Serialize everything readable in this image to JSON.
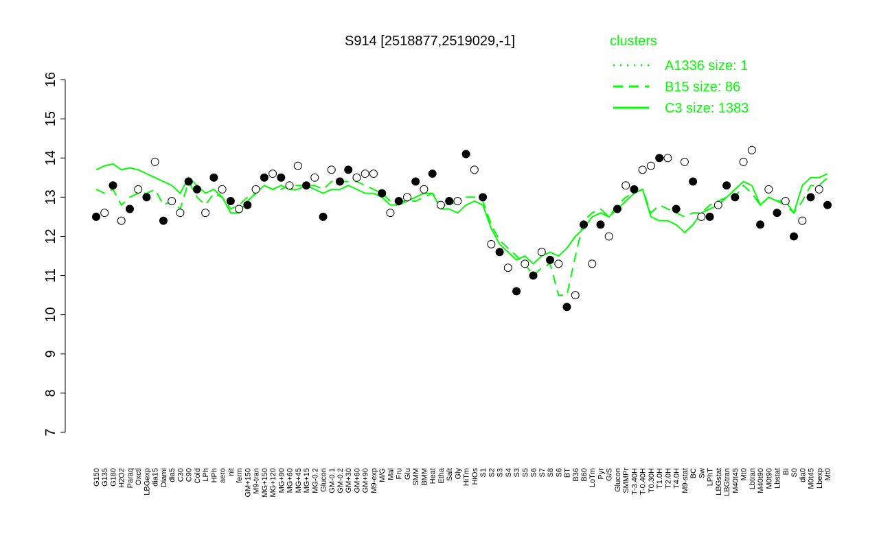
{
  "chart_data": {
    "type": "line",
    "title": "S914 [2518877,2519029,-1]",
    "legend_title": "clusters",
    "ylim": [
      7,
      16
    ],
    "yticks": [
      7,
      8,
      9,
      10,
      11,
      12,
      13,
      14,
      15,
      16
    ],
    "categories": [
      "G150",
      "G135",
      "G180",
      "H2O2",
      "Paraq",
      "Oxctl",
      "LBGexp",
      "dia15",
      "Diami",
      "dia5",
      "C30",
      "C90",
      "Cold",
      "LPh",
      "HPh",
      "aero",
      "nit",
      "ferm",
      "GM+150",
      "M9-tran",
      "MG+150",
      "MG+120",
      "MG+90",
      "MG+60",
      "MG+45",
      "MG+15",
      "MG-0.2",
      "Glucon",
      "GM-0.1",
      "GM-0.2",
      "GM+30",
      "GM+60",
      "GM+90",
      "M9-exp",
      "M/G",
      "Mal",
      "Fru",
      "Glu",
      "SMM",
      "BMM",
      "Heat",
      "Etha",
      "Salt",
      "Gly",
      "HiTm",
      "HiOs",
      "S1",
      "S2",
      "S3",
      "S4",
      "S3",
      "S5",
      "S6",
      "S7",
      "S8",
      "S6",
      "BT",
      "B36",
      "B60",
      "LoTm",
      "Pyr",
      "G/S",
      "Glucon",
      "SMMPr",
      "T-3.40H",
      "T-0.40H",
      "T0.30H",
      "T1.0H",
      "T2.0H",
      "T4.0H",
      "M9-stat",
      "BC",
      "Sw",
      "LPhT",
      "LBGstat",
      "LBGtran",
      "M40t45",
      "Mt0",
      "Lbtran",
      "M40t90",
      "M0t90",
      "Lbstat",
      "BI",
      "S0",
      "dia0",
      "M0t45",
      "Lbexp",
      "Mt0"
    ],
    "points": {
      "values": [
        12.5,
        12.6,
        13.3,
        12.4,
        12.7,
        13.2,
        13.0,
        13.9,
        12.4,
        12.9,
        12.6,
        13.4,
        13.2,
        12.6,
        13.5,
        13.2,
        12.9,
        12.7,
        12.8,
        13.2,
        13.5,
        13.6,
        13.5,
        13.3,
        13.8,
        13.3,
        13.5,
        12.5,
        13.7,
        13.4,
        13.7,
        13.5,
        13.6,
        13.6,
        13.1,
        12.6,
        12.9,
        13.0,
        13.4,
        13.2,
        13.6,
        12.8,
        12.9,
        12.9,
        14.1,
        13.7,
        13.0,
        11.8,
        11.6,
        11.2,
        10.6,
        11.3,
        11.0,
        11.6,
        11.4,
        11.3,
        10.2,
        10.5,
        12.3,
        11.3,
        12.3,
        12.0,
        12.7,
        13.3,
        13.2,
        13.7,
        13.8,
        14.0,
        14.0,
        12.7,
        13.9,
        13.4,
        12.5,
        12.5,
        12.8,
        13.3,
        13.0,
        13.9,
        14.2,
        12.3,
        13.2,
        12.6,
        12.9,
        12.0,
        12.4,
        13.0,
        13.2,
        12.8
      ],
      "filled": [
        true,
        false,
        true,
        false,
        true,
        false,
        true,
        false,
        true,
        false,
        false,
        true,
        true,
        false,
        true,
        false,
        true,
        false,
        true,
        false,
        true,
        false,
        true,
        false,
        false,
        true,
        false,
        true,
        false,
        true,
        true,
        false,
        false,
        false,
        true,
        false,
        true,
        false,
        true,
        false,
        true,
        false,
        true,
        false,
        true,
        false,
        true,
        false,
        true,
        false,
        true,
        false,
        true,
        false,
        true,
        false,
        true,
        false,
        true,
        false,
        true,
        false,
        true,
        false,
        true,
        false,
        false,
        true,
        false,
        true,
        false,
        true,
        false,
        true,
        false,
        true,
        true,
        false,
        false,
        true,
        false,
        true,
        false,
        true,
        false,
        true,
        false,
        true
      ]
    },
    "series": [
      {
        "name": "A1336 size: 1",
        "color": "#00ff00",
        "style": "dotted"
      },
      {
        "name": "B15 size: 86",
        "color": "#00ff00",
        "style": "dashed",
        "values": [
          13.2,
          13.1,
          13.2,
          12.8,
          13.0,
          13.1,
          13.1,
          13.2,
          12.8,
          12.9,
          12.7,
          13.4,
          13.0,
          12.8,
          13.1,
          13.0,
          12.7,
          12.8,
          13.0,
          13.1,
          13.3,
          13.2,
          13.2,
          13.3,
          13.3,
          13.3,
          13.3,
          13.2,
          13.4,
          13.4,
          13.4,
          13.4,
          13.3,
          13.2,
          13.1,
          12.9,
          12.9,
          12.9,
          12.9,
          13.0,
          13.1,
          12.8,
          12.8,
          12.9,
          13.0,
          13.0,
          12.9,
          12.3,
          11.9,
          11.7,
          11.5,
          11.3,
          11.0,
          11.2,
          11.3,
          10.5,
          10.5,
          11.5,
          12.4,
          12.6,
          12.7,
          12.5,
          12.8,
          13.0,
          13.1,
          13.2,
          12.6,
          12.8,
          12.7,
          12.6,
          12.5,
          12.6,
          12.6,
          12.8,
          12.9,
          13.0,
          13.0,
          13.3,
          13.1,
          12.8,
          13.0,
          12.9,
          12.8,
          12.6,
          12.9,
          13.3,
          13.3,
          13.5
        ]
      },
      {
        "name": "C3 size: 1383",
        "color": "#00ff00",
        "style": "solid",
        "values": [
          13.7,
          13.8,
          13.85,
          13.7,
          13.75,
          13.7,
          13.6,
          13.5,
          13.4,
          13.3,
          13.1,
          13.5,
          13.3,
          13.1,
          13.2,
          13.0,
          12.6,
          12.6,
          12.9,
          13.1,
          13.3,
          13.2,
          13.3,
          13.2,
          13.2,
          13.3,
          13.2,
          13.1,
          13.2,
          13.2,
          13.3,
          13.2,
          13.1,
          13.1,
          13.0,
          12.8,
          12.8,
          12.9,
          13.0,
          13.1,
          13.1,
          12.7,
          12.7,
          12.6,
          12.8,
          12.9,
          12.8,
          12.2,
          11.8,
          11.6,
          11.4,
          11.5,
          11.3,
          11.5,
          11.6,
          11.5,
          11.7,
          12.0,
          12.2,
          12.5,
          12.6,
          12.5,
          12.7,
          12.9,
          13.1,
          13.2,
          12.5,
          12.4,
          12.4,
          12.3,
          12.1,
          12.3,
          12.6,
          12.7,
          12.8,
          13.0,
          13.2,
          13.4,
          13.3,
          12.8,
          13.0,
          12.9,
          12.9,
          12.6,
          13.3,
          13.5,
          13.5,
          13.6
        ]
      }
    ]
  }
}
